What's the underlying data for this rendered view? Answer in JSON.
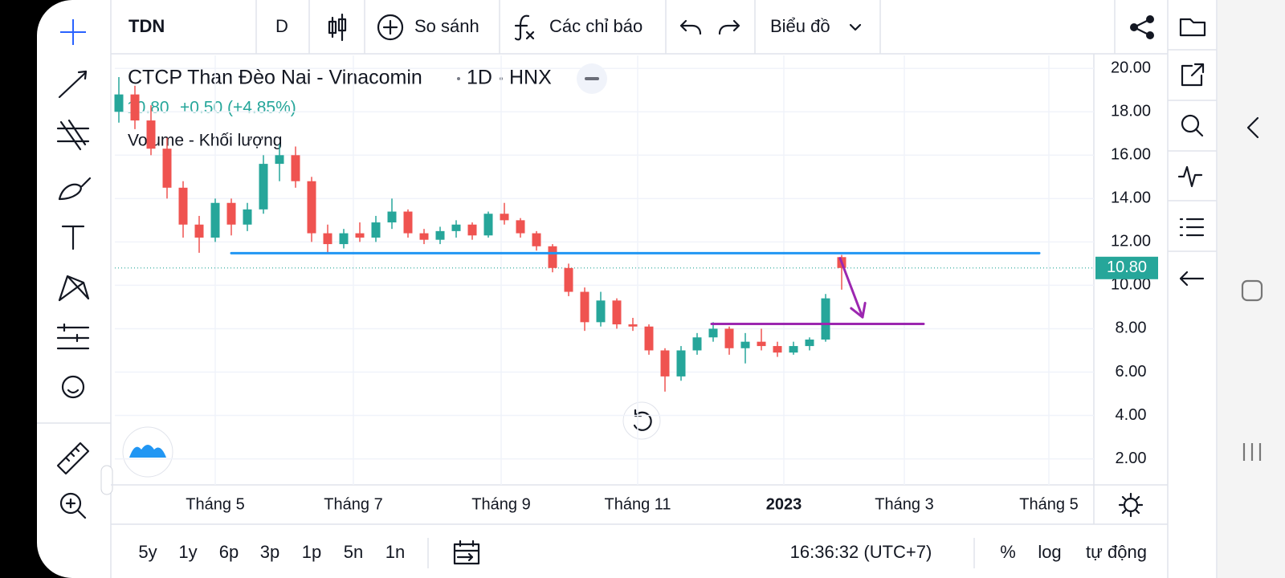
{
  "toolbar": {
    "symbol": "TDN",
    "interval": "D",
    "compare": "So sánh",
    "indicators": "Các chỉ báo",
    "chart_type": "Biểu đồ"
  },
  "chart_data": {
    "type": "candlestick",
    "title": "CTCP Than Đèo Nai - Vinacomin",
    "interval": "1D",
    "exchange": "HNX",
    "last": "10.80",
    "change": "+0.50 (+4.85%)",
    "indicator": "Volume - Khối lượng",
    "candles": {
      "open": [
        18.0,
        18.8,
        17.6,
        16.3,
        14.5,
        12.8,
        12.2,
        13.8,
        12.8,
        13.5,
        15.6,
        16.0,
        14.8,
        12.4,
        11.9,
        12.4,
        12.2,
        12.9,
        13.4,
        12.4,
        12.1,
        12.5,
        12.8,
        12.3,
        13.3,
        13.0,
        12.4,
        11.8,
        10.8,
        9.7,
        8.3,
        9.3,
        8.2,
        8.1,
        7.0,
        5.8,
        7.0,
        7.6,
        8.0,
        7.1,
        7.4,
        7.2,
        6.9,
        7.2,
        7.5,
        11.3
      ],
      "high": [
        19.6,
        19.2,
        18.3,
        16.8,
        14.8,
        13.2,
        14.0,
        14.0,
        13.8,
        16.0,
        16.5,
        16.4,
        15.0,
        12.8,
        12.6,
        12.9,
        13.2,
        14.0,
        13.5,
        12.6,
        12.7,
        13.0,
        12.9,
        13.4,
        13.8,
        13.1,
        12.5,
        11.9,
        11.0,
        9.9,
        9.7,
        9.4,
        8.5,
        8.2,
        7.1,
        7.2,
        7.8,
        8.3,
        8.1,
        7.8,
        8.0,
        7.4,
        7.4,
        7.6,
        9.6,
        11.4
      ],
      "low": [
        17.5,
        17.2,
        16.0,
        14.0,
        12.2,
        11.5,
        12.0,
        12.3,
        12.5,
        13.3,
        14.8,
        14.5,
        12.0,
        11.5,
        11.7,
        12.0,
        12.0,
        12.6,
        12.2,
        11.9,
        11.9,
        12.2,
        12.1,
        12.2,
        12.8,
        12.2,
        11.6,
        10.6,
        9.5,
        7.9,
        8.1,
        8.0,
        7.9,
        6.8,
        5.1,
        5.6,
        6.8,
        7.4,
        6.8,
        6.4,
        7.0,
        6.7,
        6.8,
        7.0,
        7.4,
        9.8
      ],
      "close": [
        18.8,
        17.6,
        16.3,
        14.5,
        12.8,
        12.2,
        13.8,
        12.8,
        13.5,
        15.6,
        16.0,
        14.8,
        12.4,
        11.9,
        12.4,
        12.2,
        12.9,
        13.4,
        12.4,
        12.1,
        12.5,
        12.8,
        12.3,
        13.3,
        13.0,
        12.4,
        11.8,
        10.8,
        9.7,
        8.3,
        9.3,
        8.2,
        8.1,
        7.0,
        5.8,
        7.0,
        7.6,
        8.0,
        7.1,
        7.4,
        7.2,
        6.9,
        7.2,
        7.5,
        9.4,
        10.8
      ]
    },
    "up_color": "#26a69a",
    "down_color": "#ef5350",
    "xlim": [
      -0.25,
      60.7
    ],
    "xticks": [
      {
        "value": 6,
        "label": "Tháng 5"
      },
      {
        "value": 14.6,
        "label": "Tháng 7"
      },
      {
        "value": 23.8,
        "label": "Tháng 9"
      },
      {
        "value": 32.3,
        "label": "Tháng 11"
      },
      {
        "value": 41.4,
        "label": "2023"
      },
      {
        "value": 48.9,
        "label": "Tháng 3"
      },
      {
        "value": 57.9,
        "label": "Tháng 5"
      }
    ],
    "ylim": [
      0.8,
      20.6
    ],
    "yticks": [
      {
        "value": 20,
        "label": "20.00"
      },
      {
        "value": 18,
        "label": "18.00"
      },
      {
        "value": 16,
        "label": "16.00"
      },
      {
        "value": 14,
        "label": "14.00"
      },
      {
        "value": 12,
        "label": "12.00"
      },
      {
        "value": 10,
        "label": "10.00"
      },
      {
        "value": 8,
        "label": "8.00"
      },
      {
        "value": 6,
        "label": "6.00"
      },
      {
        "value": 4,
        "label": "4.00"
      },
      {
        "value": 2,
        "label": "2.00"
      }
    ],
    "grid": true,
    "last_price": {
      "value": 10.8,
      "label": "10.80"
    },
    "drawings": [
      {
        "type": "hline",
        "color": "#2196f3",
        "x": [
          7.0,
          57.3
        ],
        "y": [
          11.48,
          11.48
        ]
      },
      {
        "type": "hline",
        "color": "#9c27b0",
        "x": [
          36.9,
          50.1
        ],
        "y": [
          8.22,
          8.22
        ]
      },
      {
        "type": "arrow",
        "color": "#9c27b0",
        "x": [
          44.9,
          46.3
        ],
        "y": [
          11.25,
          8.53
        ]
      }
    ]
  },
  "bottom_bar": {
    "ranges": [
      "5y",
      "1y",
      "6p",
      "3p",
      "1p",
      "5n",
      "1n"
    ],
    "time": "16:36:32 (UTC+7)",
    "percent": "%",
    "log": "log",
    "auto": "tự động"
  }
}
